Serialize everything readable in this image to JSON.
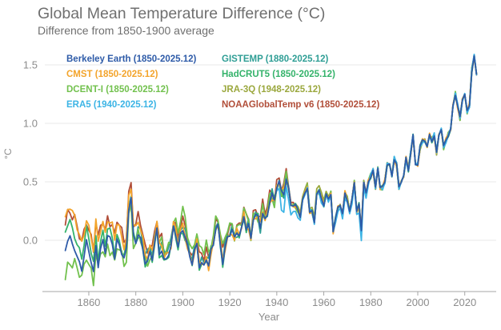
{
  "header": {
    "title": "Global Mean Temperature Difference (°C)",
    "subtitle": "Difference from 1850-1900 average"
  },
  "axes": {
    "x_label": "Year",
    "y_label": "°C"
  },
  "colors": {
    "background": "#ffffff",
    "title_text": "#6f6f6f",
    "tick_text": "#8c8c8c",
    "axis_line": "#a6a6a6",
    "gridline": "#e8e8e8"
  },
  "chart_data": {
    "type": "line",
    "title": "Global Mean Temperature Difference (°C)",
    "subtitle": "Difference from 1850-1900 average",
    "xlabel": "Year",
    "ylabel": "°C",
    "x_range": [
      1850,
      2025.92
    ],
    "ylim": [
      -0.45,
      1.65
    ],
    "xticks": [
      1860,
      1880,
      1900,
      1920,
      1940,
      1960,
      1980,
      2000,
      2020
    ],
    "yticks": [
      0.0,
      0.5,
      1.0,
      1.5
    ],
    "ytick_labels": [
      "0.0",
      "0.5",
      "1.0",
      "1.5"
    ],
    "grid": "horizontal",
    "legend_position": "top-left-inside",
    "years_start": 1850,
    "base_values": [
      -0.02,
      0.08,
      0.1,
      0.02,
      0.0,
      -0.05,
      -0.12,
      -0.18,
      -0.05,
      0.05,
      -0.05,
      -0.12,
      -0.22,
      0.0,
      -0.15,
      0.0,
      0.05,
      -0.05,
      0.1,
      0.05,
      0.0,
      -0.1,
      0.05,
      0.0,
      -0.05,
      -0.1,
      -0.05,
      0.3,
      0.4,
      0.05,
      0.0,
      0.1,
      0.05,
      -0.05,
      -0.15,
      -0.15,
      -0.1,
      -0.15,
      0.0,
      0.1,
      -0.1,
      -0.05,
      -0.15,
      -0.15,
      -0.1,
      -0.05,
      0.1,
      0.05,
      -0.05,
      0.05,
      0.1,
      0.05,
      -0.05,
      -0.15,
      -0.2,
      -0.1,
      -0.05,
      -0.22,
      -0.18,
      -0.22,
      -0.15,
      -0.2,
      -0.1,
      -0.05,
      0.1,
      0.12,
      -0.05,
      -0.18,
      -0.05,
      0.02,
      0.05,
      0.1,
      0.0,
      0.05,
      0.05,
      0.1,
      0.2,
      0.12,
      0.15,
      0.0,
      0.18,
      0.22,
      0.18,
      0.1,
      0.25,
      0.18,
      0.22,
      0.35,
      0.4,
      0.32,
      0.45,
      0.5,
      0.4,
      0.4,
      0.55,
      0.45,
      0.3,
      0.3,
      0.3,
      0.25,
      0.2,
      0.35,
      0.4,
      0.45,
      0.25,
      0.25,
      0.15,
      0.4,
      0.42,
      0.35,
      0.3,
      0.4,
      0.35,
      0.4,
      0.08,
      0.18,
      0.28,
      0.3,
      0.22,
      0.4,
      0.35,
      0.25,
      0.35,
      0.5,
      0.25,
      0.3,
      0.08,
      0.5,
      0.4,
      0.5,
      0.55,
      0.6,
      0.45,
      0.62,
      0.45,
      0.45,
      0.5,
      0.65,
      0.65,
      0.55,
      0.7,
      0.65,
      0.45,
      0.5,
      0.55,
      0.7,
      0.6,
      0.75,
      0.9,
      0.65,
      0.65,
      0.8,
      0.85,
      0.85,
      0.8,
      0.9,
      0.85,
      0.9,
      0.75,
      0.9,
      0.95,
      0.8,
      0.85,
      0.9,
      0.95,
      1.15,
      1.25,
      1.15,
      1.05,
      1.2,
      1.25,
      1.1,
      1.15,
      1.45,
      1.58,
      1.42
    ],
    "draw_order": [
      7,
      4,
      6,
      5,
      2,
      1,
      3,
      0
    ],
    "series": [
      {
        "name": "Berkeley Earth",
        "label": "Berkeley Earth (1850-2025.12)",
        "color": "#2e5ba8",
        "start": 1850,
        "end": 2025,
        "jitter": 0.02,
        "offsets": [
          [
            1850,
            -0.08
          ],
          [
            1875,
            -0.04
          ],
          [
            1900,
            0
          ]
        ]
      },
      {
        "name": "CMST",
        "label": "CMST (1850-2025.12)",
        "color": "#f3a42b",
        "start": 1850,
        "end": 2025,
        "jitter": 0.04,
        "offsets": [
          [
            1850,
            0.2
          ],
          [
            1860,
            0.14
          ],
          [
            1875,
            0.08
          ],
          [
            1890,
            0.03
          ],
          [
            1910,
            0
          ]
        ]
      },
      {
        "name": "DCENT-I",
        "label": "DCENT-I (1850-2025.12)",
        "color": "#72c14e",
        "start": 1850,
        "end": 2025,
        "jitter": 0.045,
        "offsets": [
          [
            1850,
            -0.3
          ],
          [
            1857,
            -0.16
          ],
          [
            1865,
            -0.12
          ],
          [
            1875,
            -0.1
          ],
          [
            1888,
            0.0
          ],
          [
            1900,
            0.13
          ],
          [
            1912,
            0.1
          ],
          [
            1925,
            0.05
          ],
          [
            1940,
            0
          ]
        ]
      },
      {
        "name": "ERA5",
        "label": "ERA5 (1940-2025.12)",
        "color": "#3cb4e5",
        "start": 1940,
        "end": 2025,
        "jitter": 0.03,
        "offsets": [
          [
            1940,
            -0.02
          ],
          [
            1943,
            -0.15
          ],
          [
            1946,
            -0.08
          ],
          [
            1952,
            0
          ],
          [
            1974,
            -0.04
          ],
          [
            1976,
            -0.07
          ],
          [
            1980,
            0
          ]
        ]
      },
      {
        "name": "GISTEMP",
        "label": "GISTEMP (1880-2025.12)",
        "color": "#2f9e95",
        "start": 1880,
        "end": 2025,
        "jitter": 0.025,
        "offsets": [
          [
            1880,
            0.03
          ],
          [
            1900,
            0.04
          ],
          [
            1925,
            0
          ]
        ]
      },
      {
        "name": "HadCRUT5",
        "label": "HadCRUT5 (1850-2025.12)",
        "color": "#35b36b",
        "start": 1850,
        "end": 2025,
        "jitter": 0.035,
        "offsets": [
          [
            1850,
            0.06
          ],
          [
            1870,
            0.0
          ],
          [
            1885,
            -0.04
          ],
          [
            1905,
            0
          ]
        ]
      },
      {
        "name": "JRA-3Q",
        "label": "JRA-3Q (1948-2025.12)",
        "color": "#9ba83e",
        "start": 1948,
        "end": 2025,
        "jitter": 0.03,
        "offsets": [
          [
            1948,
            0.02
          ],
          [
            1958,
            0.05
          ],
          [
            1965,
            0
          ]
        ]
      },
      {
        "name": "NOAAGlobalTemp v6",
        "label": "NOAAGlobalTemp v6 (1850-2025.12)",
        "color": "#b14e39",
        "start": 1850,
        "end": 2025,
        "jitter": 0.04,
        "offsets": [
          [
            1850,
            0.17
          ],
          [
            1865,
            0.13
          ],
          [
            1880,
            0.1
          ],
          [
            1895,
            0.06
          ],
          [
            1915,
            0.06
          ],
          [
            1935,
            0.06
          ],
          [
            1950,
            0.01
          ],
          [
            1960,
            0
          ]
        ]
      }
    ]
  },
  "legend": {
    "column1_series": [
      0,
      1,
      2,
      3
    ],
    "column2_series": [
      4,
      5,
      6,
      7
    ]
  }
}
